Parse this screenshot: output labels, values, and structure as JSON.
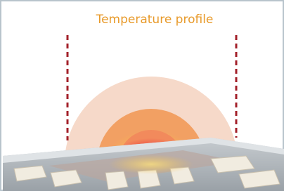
{
  "title": "Temperature profile"
}
